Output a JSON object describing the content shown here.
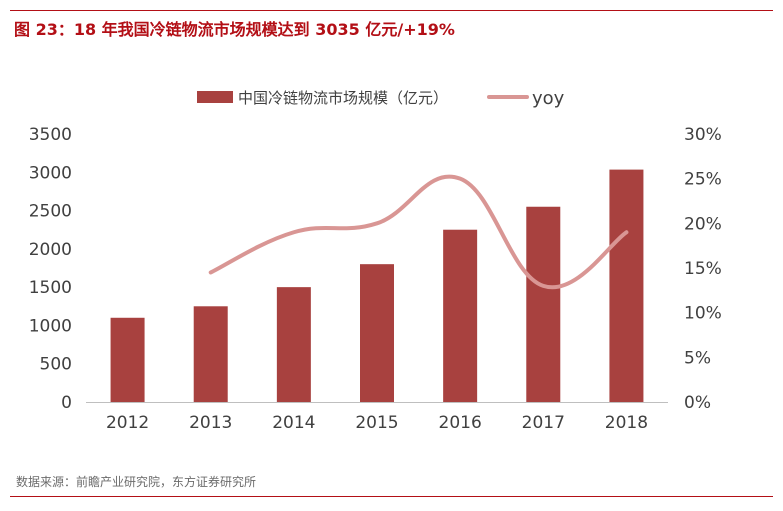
{
  "header": {
    "title": "图 23：18 年我国冷链物流市场规模达到 3035 亿元/+19%"
  },
  "footer": {
    "source": "数据来源：前瞻产业研究院，东方证券研究所"
  },
  "colors": {
    "accent": "#b30f16",
    "bar": "#a8413f",
    "line": "#d99694"
  },
  "chart_data": {
    "type": "bar",
    "categories": [
      "2012",
      "2013",
      "2014",
      "2015",
      "2016",
      "2017",
      "2018"
    ],
    "series": [
      {
        "name": "中国冷链物流市场规模（亿元）",
        "type": "bar",
        "axis": "left",
        "values": [
          1100,
          1250,
          1500,
          1800,
          2250,
          2550,
          3035
        ]
      },
      {
        "name": "yoy",
        "type": "line",
        "axis": "right",
        "values": [
          null,
          0.145,
          0.19,
          0.2,
          0.25,
          0.13,
          0.19
        ]
      }
    ],
    "y_left": {
      "min": 0,
      "max": 3500,
      "ticks": [
        "0",
        "500",
        "1000",
        "1500",
        "2000",
        "2500",
        "3000",
        "3500"
      ]
    },
    "y_right": {
      "min": 0,
      "max": 0.3,
      "ticks": [
        "0%",
        "5%",
        "10%",
        "15%",
        "20%",
        "25%",
        "30%"
      ]
    },
    "legend_position": "top",
    "grid": false
  }
}
